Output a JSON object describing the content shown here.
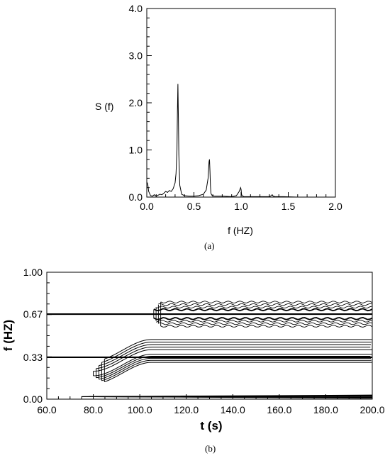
{
  "chart_data": [
    {
      "id": "a",
      "type": "line",
      "caption": "(a)",
      "xlabel": "f (HZ)",
      "ylabel": "S (f)",
      "xlim": [
        0.0,
        2.0
      ],
      "ylim": [
        0.0,
        4.0
      ],
      "x_ticks": [
        "0.0",
        "0.5",
        "1.0",
        "1.5",
        "2.0"
      ],
      "y_ticks": [
        "0.0",
        "1.0",
        "2.0",
        "3.0",
        "4.0"
      ],
      "grid": false,
      "series": [
        {
          "x": [
            0.0,
            0.01,
            0.02,
            0.04,
            0.06,
            0.08,
            0.1,
            0.12,
            0.14,
            0.16,
            0.18,
            0.2,
            0.22,
            0.24,
            0.26,
            0.28,
            0.3,
            0.31,
            0.32,
            0.325,
            0.33,
            0.335,
            0.34,
            0.35,
            0.37,
            0.4,
            0.45,
            0.5,
            0.55,
            0.6,
            0.63,
            0.65,
            0.66,
            0.665,
            0.67,
            0.675,
            0.68,
            0.69,
            0.72,
            0.8,
            0.9,
            0.95,
            0.98,
            0.995,
            1.0,
            1.005,
            1.01,
            1.03,
            1.1,
            1.2,
            1.3,
            1.32,
            1.33,
            1.34,
            1.36,
            1.45,
            1.6,
            1.8,
            2.0
          ],
          "y": [
            0.32,
            0.28,
            0.12,
            0.03,
            0.02,
            0.05,
            0.02,
            0.04,
            0.06,
            0.05,
            0.08,
            0.12,
            0.1,
            0.14,
            0.12,
            0.18,
            0.3,
            0.5,
            1.0,
            1.8,
            2.4,
            1.7,
            0.9,
            0.25,
            0.06,
            0.03,
            0.02,
            0.02,
            0.03,
            0.06,
            0.15,
            0.4,
            0.75,
            0.8,
            0.55,
            0.25,
            0.08,
            0.04,
            0.02,
            0.02,
            0.01,
            0.03,
            0.12,
            0.2,
            0.16,
            0.06,
            0.03,
            0.01,
            0.01,
            0.01,
            0.01,
            0.03,
            0.05,
            0.02,
            0.01,
            0.01,
            0.0,
            0.0,
            0.0
          ]
        }
      ]
    },
    {
      "id": "b",
      "type": "contour",
      "caption": "(b)",
      "xlabel": "t (s)",
      "ylabel": "f (HZ)",
      "xlim": [
        60.0,
        200.0
      ],
      "ylim": [
        0.0,
        1.0
      ],
      "x_ticks": [
        "60.0",
        "80.0",
        "100.0",
        "120.0",
        "140.0",
        "160.0",
        "180.0",
        "200.0"
      ],
      "y_ticks": [
        "0.00",
        "0.33",
        "0.67",
        "1.00"
      ],
      "grid": false,
      "reference_lines_f": [
        0.33,
        0.67
      ],
      "contour_bands": [
        {
          "f_center": 0.67,
          "f_half_width": [
            0.035,
            0.055,
            0.075,
            0.095
          ],
          "t_start": 104.0,
          "t_end": 200.0,
          "ripple_amp": 0.008
        },
        {
          "f_center": 0.37,
          "f_half_width": [
            0.02,
            0.04,
            0.06,
            0.08,
            0.1
          ],
          "t_start": 80.0,
          "t_end": 200.0,
          "f_start": 0.2,
          "ramp_end_t": 105.0
        },
        {
          "f_center": 0.02,
          "f_half_width": [
            0.004,
            0.008,
            0.012
          ],
          "t_start": 75.0,
          "t_end": 200.0
        }
      ]
    }
  ]
}
